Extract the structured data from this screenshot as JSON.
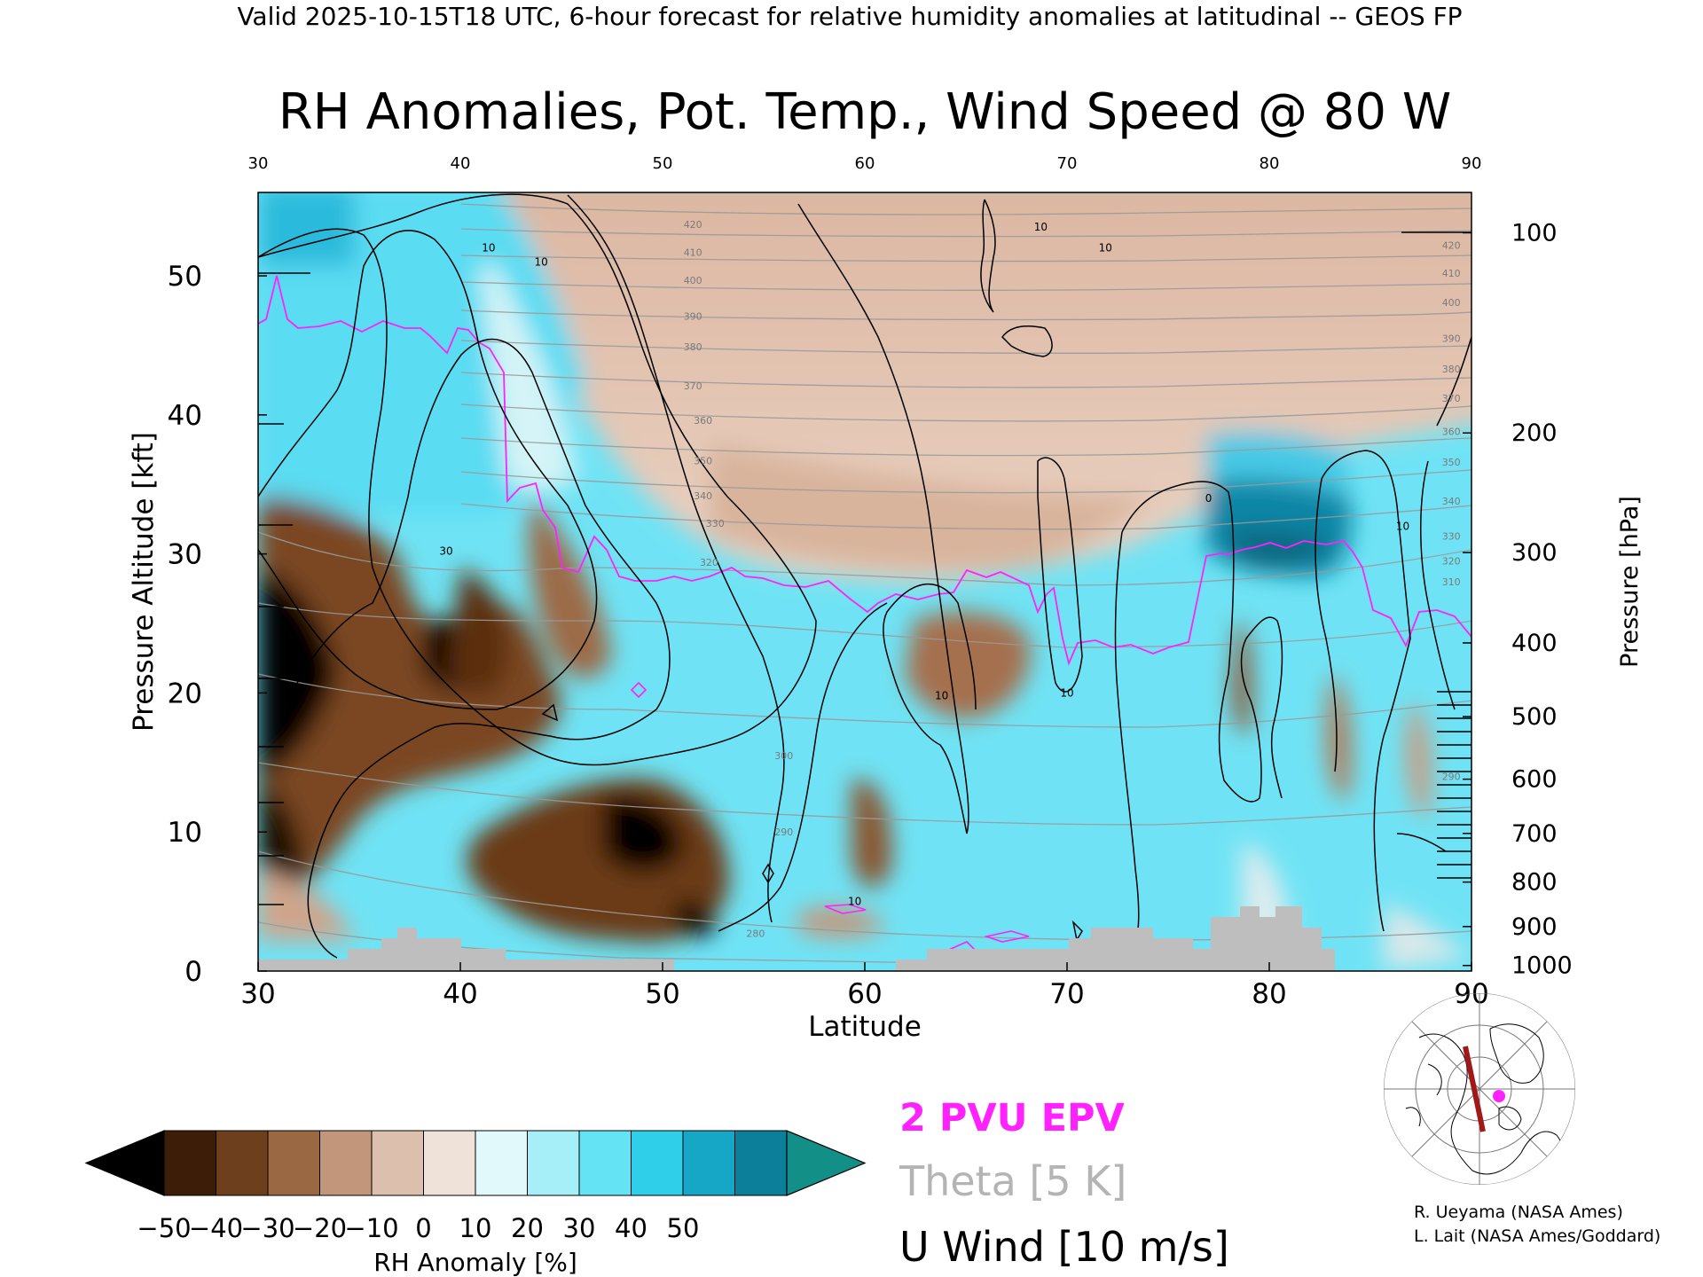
{
  "header": "Valid 2025-10-15T18 UTC, 6-hour forecast for relative humidity anomalies at latitudinal -- GEOS FP",
  "chart_data": {
    "type": "heatmap",
    "title": "RH Anomalies, Pot. Temp., Wind Speed @ 80 W",
    "xlabel": "Latitude",
    "ylabel_left": "Pressure Altitude [kft]",
    "ylabel_right": "Pressure [hPa]",
    "xlim": [
      30,
      90
    ],
    "ylim": [
      0,
      56
    ],
    "x_ticks": [
      "30",
      "40",
      "50",
      "60",
      "70",
      "80",
      "90"
    ],
    "y_ticks": [
      "0",
      "10",
      "20",
      "30",
      "40",
      "50"
    ],
    "pressure_ticks": [
      {
        "label": "100",
        "kft": 53.1
      },
      {
        "label": "200",
        "kft": 38.7
      },
      {
        "label": "300",
        "kft": 30.1
      },
      {
        "label": "400",
        "kft": 23.6
      },
      {
        "label": "500",
        "kft": 18.3
      },
      {
        "label": "600",
        "kft": 13.8
      },
      {
        "label": "700",
        "kft": 9.9
      },
      {
        "label": "800",
        "kft": 6.4
      },
      {
        "label": "900",
        "kft": 3.2
      },
      {
        "label": "1000",
        "kft": 0.4
      }
    ],
    "theta_labels": [
      {
        "x": 51.5,
        "y": 53.7,
        "text": "420"
      },
      {
        "x": 51.5,
        "y": 51.7,
        "text": "410"
      },
      {
        "x": 51.5,
        "y": 49.7,
        "text": "400"
      },
      {
        "x": 51.5,
        "y": 47.1,
        "text": "390"
      },
      {
        "x": 51.5,
        "y": 44.9,
        "text": "380"
      },
      {
        "x": 51.5,
        "y": 42.1,
        "text": "370"
      },
      {
        "x": 52.0,
        "y": 39.6,
        "text": "360"
      },
      {
        "x": 52.0,
        "y": 36.7,
        "text": "350"
      },
      {
        "x": 52.0,
        "y": 34.2,
        "text": "340"
      },
      {
        "x": 52.6,
        "y": 32.2,
        "text": "330"
      },
      {
        "x": 52.3,
        "y": 29.4,
        "text": "320"
      },
      {
        "x": 56.0,
        "y": 15.5,
        "text": "300"
      },
      {
        "x": 56.0,
        "y": 10.0,
        "text": "290"
      },
      {
        "x": 54.6,
        "y": 2.7,
        "text": "280"
      },
      {
        "x": 89.0,
        "y": 52.2,
        "text": "420"
      },
      {
        "x": 89.0,
        "y": 50.2,
        "text": "410"
      },
      {
        "x": 89.0,
        "y": 48.1,
        "text": "400"
      },
      {
        "x": 89.0,
        "y": 45.5,
        "text": "390"
      },
      {
        "x": 89.0,
        "y": 43.3,
        "text": "380"
      },
      {
        "x": 89.0,
        "y": 41.2,
        "text": "370"
      },
      {
        "x": 89.0,
        "y": 38.8,
        "text": "360"
      },
      {
        "x": 89.0,
        "y": 36.6,
        "text": "350"
      },
      {
        "x": 89.0,
        "y": 33.8,
        "text": "340"
      },
      {
        "x": 89.0,
        "y": 31.3,
        "text": "330"
      },
      {
        "x": 89.0,
        "y": 29.5,
        "text": "320"
      },
      {
        "x": 89.0,
        "y": 28.0,
        "text": "310"
      },
      {
        "x": 89.0,
        "y": 14.0,
        "text": "290"
      }
    ],
    "wind_labels": [
      {
        "x": 39.3,
        "y": 30.2,
        "text": "30"
      },
      {
        "x": 41.4,
        "y": 52.0,
        "text": "10"
      },
      {
        "x": 44.0,
        "y": 51.0,
        "text": "10"
      },
      {
        "x": 63.8,
        "y": 19.8,
        "text": "10"
      },
      {
        "x": 68.7,
        "y": 53.5,
        "text": "10"
      },
      {
        "x": 70.0,
        "y": 20.0,
        "text": "10"
      },
      {
        "x": 71.9,
        "y": 52.0,
        "text": "10"
      },
      {
        "x": 77.0,
        "y": 34.0,
        "text": "0"
      },
      {
        "x": 86.6,
        "y": 32.0,
        "text": "10"
      },
      {
        "x": 59.5,
        "y": 5.0,
        "text": "10"
      }
    ],
    "legend": [
      {
        "label": "2 PVU EPV",
        "color": "#ff22ff"
      },
      {
        "label": "Theta [5 K]",
        "color": "#b4b4b4"
      },
      {
        "label": "U Wind [10 m/s]",
        "color": "#000000"
      }
    ],
    "colorbar": {
      "label": "RH Anomaly [%]",
      "ticks": [
        "−50",
        "−40",
        "−30",
        "−20",
        "−10",
        "0",
        "10",
        "20",
        "30",
        "40",
        "50"
      ],
      "colors": [
        "#000000",
        "#3d1d08",
        "#6e3f1c",
        "#9a6843",
        "#c2967a",
        "#dcc0ad",
        "#efe2d8",
        "#e2f9fb",
        "#a6eff8",
        "#63e3f4",
        "#2fcfea",
        "#16a6c6",
        "#0c7f9b",
        "#128f86"
      ]
    }
  },
  "credits": [
    "R. Ueyama (NASA Ames)",
    "L. Lait (NASA Ames/Goddard)"
  ]
}
